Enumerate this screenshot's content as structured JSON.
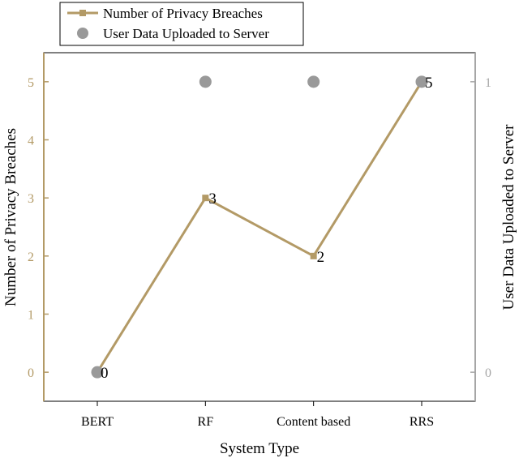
{
  "chart_data": {
    "type": "line",
    "categories": [
      "BERT",
      "RF",
      "Content based",
      "RRS"
    ],
    "xlabel": "System Type",
    "ylabel_left": "Number of Privacy Breaches",
    "ylabel_right": "User Data Uploaded to Server",
    "ylim_left": [
      -0.5,
      5.5
    ],
    "yticks_left": [
      0,
      1,
      2,
      3,
      4,
      5
    ],
    "ylim_right": [
      -0.1,
      1.1
    ],
    "yticks_right": [
      0,
      1
    ],
    "legend_position": "top-left",
    "grid": false,
    "series": [
      {
        "name": "Number of Privacy Breaches",
        "kind": "line",
        "marker": "square",
        "axis": "left",
        "color": "#b39a66",
        "values": [
          0,
          3,
          2,
          5
        ],
        "data_labels": [
          "0",
          "3",
          "2",
          "5"
        ]
      },
      {
        "name": "User Data Uploaded to Server",
        "kind": "scatter",
        "marker": "circle",
        "axis": "right",
        "color": "#999999",
        "values": [
          0,
          1,
          1,
          1
        ]
      }
    ],
    "axis_colors": {
      "left": "#b39a66",
      "right": "#a6a6a6",
      "frame": "#000000"
    }
  }
}
